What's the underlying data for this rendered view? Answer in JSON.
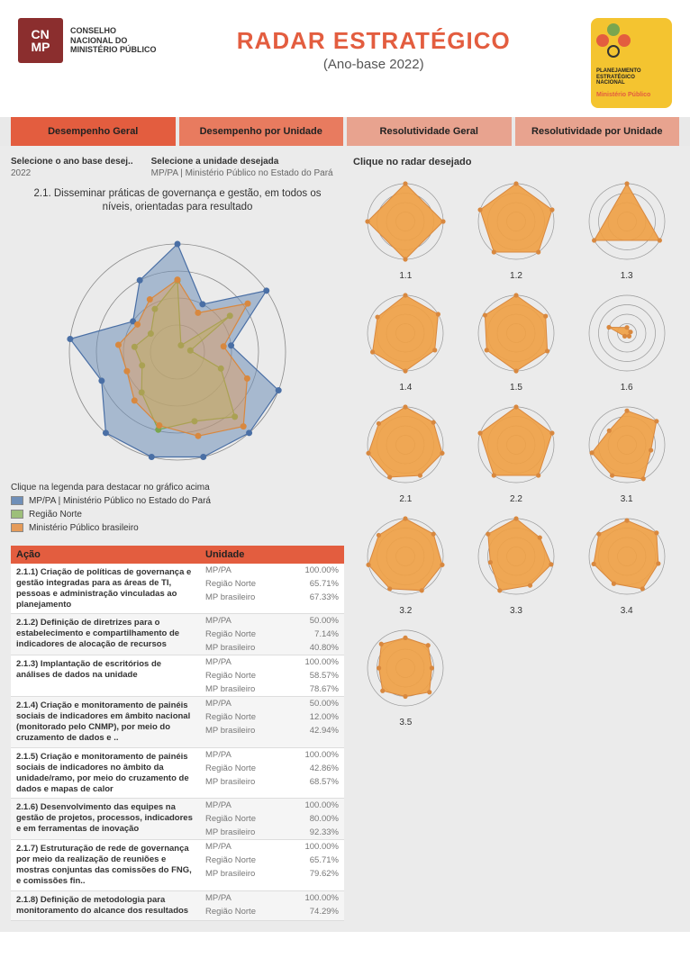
{
  "header": {
    "org_line1": "CONSELHO",
    "org_line2": "NACIONAL DO",
    "org_line3": "MINISTÉRIO PÚBLICO",
    "logo_abbr": "CN\nMP",
    "title": "RADAR ESTRATÉGICO",
    "subtitle": "(Ano-base 2022)",
    "pen_line1": "PLANEJAMENTO",
    "pen_line2": "ESTRATÉGICO",
    "pen_line3": "NACIONAL",
    "pen_line4": "Ministério Público"
  },
  "tabs": {
    "t1": "Desempenho Geral",
    "t2": "Desempenho por Unidade",
    "t3": "Resolutividade Geral",
    "t4": "Resolutividade por Unidade"
  },
  "selectors": {
    "year_label": "Selecione o ano base desej..",
    "year_value": "2022",
    "unit_label": "Selecione a unidade desejada",
    "unit_value": "MP/PA | Ministério Público no Estado do Pará"
  },
  "chart_title": "2.1. Disseminar práticas de governança e gestão, em todos os níveis, orientadas para resultado",
  "main_radar": {
    "rings": [
      0.25,
      0.5,
      0.75,
      1.0
    ],
    "ring_color": "#888",
    "background": "#ebebeb",
    "series": [
      {
        "name": "MP/PA | Ministério Público no Estado do Pará",
        "fill": "#6f8fb8",
        "fill_opacity": 0.55,
        "stroke": "#4a6fa5",
        "marker": "#4a6fa5",
        "values": [
          1.0,
          0.5,
          1.0,
          0.5,
          1.0,
          1.0,
          1.0,
          1.0,
          1.0,
          0.75,
          1.0,
          0.5,
          0.75
        ]
      },
      {
        "name": "Região Norte",
        "fill": "#9dbf7a",
        "fill_opacity": 0.5,
        "stroke": "#7aa64f",
        "marker": "#7aa64f",
        "values": [
          0.66,
          0.07,
          0.59,
          0.12,
          0.43,
          0.8,
          0.66,
          0.74,
          0.5,
          0.35,
          0.4,
          0.3,
          0.45
        ]
      },
      {
        "name": "Ministério Público brasileiro",
        "fill": "#e59b59",
        "fill_opacity": 0.45,
        "stroke": "#d8883f",
        "marker": "#d8883f",
        "values": [
          0.67,
          0.41,
          0.79,
          0.43,
          0.69,
          0.92,
          0.8,
          0.7,
          0.6,
          0.5,
          0.55,
          0.45,
          0.55
        ]
      }
    ]
  },
  "legend": {
    "title": "Clique na legenda para destacar no gráfico acima",
    "items": [
      {
        "label": "MP/PA | Ministério Público no Estado do Pará",
        "color": "#6f8fb8"
      },
      {
        "label": "Região Norte",
        "color": "#9dbf7a"
      },
      {
        "label": "Ministério Público brasileiro",
        "color": "#e59b59"
      }
    ]
  },
  "table": {
    "col_acao": "Ação",
    "col_unidade": "Unidade",
    "rows": [
      {
        "acao": "2.1.1) Criação de políticas de governança e gestão integradas para as áreas de TI, pessoas e administração vinculadas ao planejamento",
        "vals": [
          [
            "MP/PA",
            "100.00%"
          ],
          [
            "Região Norte",
            "65.71%"
          ],
          [
            "MP brasileiro",
            "67.33%"
          ]
        ]
      },
      {
        "acao": "2.1.2) Definição de diretrizes para o estabelecimento e compartilhamento de indicadores de alocação de recursos",
        "vals": [
          [
            "MP/PA",
            "50.00%"
          ],
          [
            "Região Norte",
            "7.14%"
          ],
          [
            "MP brasileiro",
            "40.80%"
          ]
        ]
      },
      {
        "acao": "2.1.3) Implantação de escritórios de análises de dados na unidade",
        "vals": [
          [
            "MP/PA",
            "100.00%"
          ],
          [
            "Região Norte",
            "58.57%"
          ],
          [
            "MP brasileiro",
            "78.67%"
          ]
        ]
      },
      {
        "acao": "2.1.4) Criação e monitoramento de painéis sociais de indicadores em âmbito nacional (monitorado pelo CNMP), por meio do cruzamento de dados e ..",
        "vals": [
          [
            "MP/PA",
            "50.00%"
          ],
          [
            "Região Norte",
            "12.00%"
          ],
          [
            "MP brasileiro",
            "42.94%"
          ]
        ]
      },
      {
        "acao": "2.1.5) Criação e monitoramento de painéis sociais de indicadores no âmbito da unidade/ramo, por meio do cruzamento de dados e mapas de calor",
        "vals": [
          [
            "MP/PA",
            "100.00%"
          ],
          [
            "Região Norte",
            "42.86%"
          ],
          [
            "MP brasileiro",
            "68.57%"
          ]
        ]
      },
      {
        "acao": "2.1.6) Desenvolvimento das equipes na gestão de projetos, processos, indicadores e em ferramentas de inovação",
        "vals": [
          [
            "MP/PA",
            "100.00%"
          ],
          [
            "Região Norte",
            "80.00%"
          ],
          [
            "MP brasileiro",
            "92.33%"
          ]
        ]
      },
      {
        "acao": "2.1.7) Estruturação de rede de governança por meio da realização de reuniões e mostras conjuntas das comissões do FNG, e comissões fin..",
        "vals": [
          [
            "MP/PA",
            "100.00%"
          ],
          [
            "Região Norte",
            "65.71%"
          ],
          [
            "MP brasileiro",
            "79.62%"
          ]
        ]
      },
      {
        "acao": "2.1.8) Definição de metodologia para monitoramento do alcance dos resultados",
        "vals": [
          [
            "MP/PA",
            "100.00%"
          ],
          [
            "Região Norte",
            "74.29%"
          ]
        ]
      }
    ]
  },
  "grid_title": "Clique no radar desejado",
  "mini_radars": {
    "fill": "#f0a044",
    "stroke": "#d8883f",
    "ring_color": "#999",
    "items": [
      {
        "label": "1.1",
        "n": 4,
        "vals": [
          1.0,
          1.0,
          1.0,
          1.0
        ]
      },
      {
        "label": "1.2",
        "n": 5,
        "vals": [
          1.0,
          1.0,
          1.0,
          1.0,
          1.0
        ]
      },
      {
        "label": "1.3",
        "n": 3,
        "vals": [
          1.0,
          1.0,
          1.0
        ]
      },
      {
        "label": "1.4",
        "n": 6,
        "vals": [
          1.0,
          1.0,
          0.9,
          1.0,
          1.0,
          0.85
        ]
      },
      {
        "label": "1.5",
        "n": 6,
        "vals": [
          1.0,
          0.9,
          0.95,
          1.0,
          0.9,
          0.95
        ]
      },
      {
        "label": "1.6",
        "n": 5,
        "vals": [
          0.15,
          0.1,
          0.1,
          0.1,
          0.5
        ]
      },
      {
        "label": "2.1",
        "n": 7,
        "vals": [
          1.0,
          0.95,
          1.0,
          0.9,
          0.95,
          1.0,
          0.9
        ]
      },
      {
        "label": "2.2",
        "n": 5,
        "vals": [
          1.0,
          1.0,
          1.0,
          1.0,
          1.0
        ]
      },
      {
        "label": "3.1",
        "n": 7,
        "vals": [
          0.9,
          1.0,
          0.65,
          1.0,
          0.9,
          0.95,
          0.6
        ]
      },
      {
        "label": "3.2",
        "n": 7,
        "vals": [
          1.0,
          0.95,
          1.0,
          1.0,
          0.95,
          1.0,
          0.9
        ]
      },
      {
        "label": "3.3",
        "n": 7,
        "vals": [
          1.0,
          0.8,
          0.95,
          0.85,
          1.0,
          0.7,
          0.95
        ]
      },
      {
        "label": "3.4",
        "n": 7,
        "vals": [
          0.95,
          1.0,
          0.85,
          0.95,
          0.8,
          0.9,
          0.95
        ]
      },
      {
        "label": "3.5",
        "n": 8,
        "vals": [
          0.8,
          0.85,
          0.7,
          0.9,
          0.75,
          0.85,
          0.7,
          0.9
        ]
      }
    ]
  },
  "colors": {
    "primary_orange": "#e35d3f",
    "tab_light": "#e8a38f",
    "body_bg": "#ebebeb"
  }
}
